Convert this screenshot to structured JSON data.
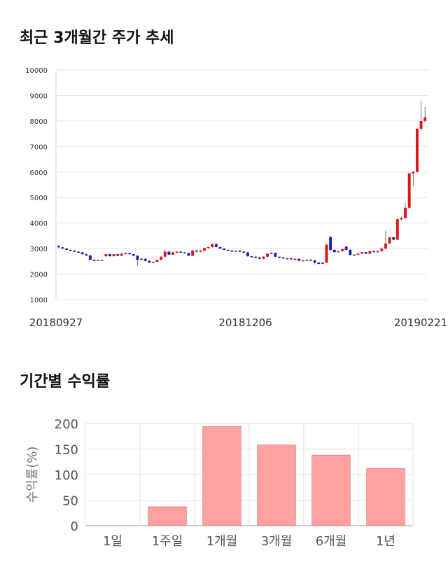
{
  "section1": {
    "title": "최근 3개월간 주가 추세"
  },
  "section2": {
    "title": "기간별 수익률"
  },
  "chart_data": [
    {
      "type": "candlestick",
      "title": "최근 3개월간 주가 추세",
      "ylim": [
        1000,
        10000
      ],
      "yticks": [
        1000,
        2000,
        3000,
        4000,
        5000,
        6000,
        7000,
        8000,
        9000,
        10000
      ],
      "x_tick_labels": [
        "20180927",
        "20181206",
        "20190221"
      ],
      "grid": true,
      "colors": {
        "up": "#d7191c",
        "down": "#1f1fb4",
        "wick": "#555555"
      },
      "candles": [
        [
          3100,
          3050,
          3130,
          3020
        ],
        [
          3050,
          3000,
          3080,
          2980
        ],
        [
          3000,
          2950,
          3020,
          2930
        ],
        [
          2950,
          2920,
          2970,
          2900
        ],
        [
          2920,
          2880,
          2940,
          2860
        ],
        [
          2880,
          2850,
          2900,
          2830
        ],
        [
          2850,
          2780,
          2870,
          2760
        ],
        [
          2780,
          2730,
          2800,
          2700
        ],
        [
          2730,
          2560,
          2750,
          2540
        ],
        [
          2560,
          2540,
          2580,
          2520
        ],
        [
          2540,
          2550,
          2570,
          2530
        ],
        [
          2550,
          2560,
          2580,
          2530
        ],
        [
          2700,
          2780,
          2800,
          2680
        ],
        [
          2780,
          2700,
          2820,
          2680
        ],
        [
          2700,
          2780,
          2800,
          2690
        ],
        [
          2780,
          2720,
          2800,
          2700
        ],
        [
          2720,
          2800,
          2830,
          2700
        ],
        [
          2800,
          2820,
          2850,
          2790
        ],
        [
          2820,
          2780,
          2840,
          2760
        ],
        [
          2780,
          2720,
          2800,
          2700
        ],
        [
          2720,
          2560,
          2740,
          2320
        ],
        [
          2560,
          2600,
          2650,
          2540
        ],
        [
          2600,
          2520,
          2620,
          2480
        ],
        [
          2520,
          2450,
          2540,
          2430
        ],
        [
          2450,
          2480,
          2500,
          2420
        ],
        [
          2480,
          2560,
          2580,
          2460
        ],
        [
          2560,
          2680,
          2700,
          2540
        ],
        [
          2680,
          2880,
          2980,
          2660
        ],
        [
          2880,
          2760,
          2900,
          2740
        ],
        [
          2760,
          2850,
          2880,
          2740
        ],
        [
          2850,
          2880,
          2900,
          2820
        ],
        [
          2880,
          2850,
          2900,
          2830
        ],
        [
          2850,
          2830,
          2870,
          2810
        ],
        [
          2830,
          2720,
          2850,
          2700
        ],
        [
          2720,
          2920,
          2940,
          2700
        ],
        [
          2920,
          2880,
          2950,
          2860
        ],
        [
          2880,
          2920,
          2950,
          2860
        ],
        [
          2920,
          3020,
          3040,
          2900
        ],
        [
          3020,
          3060,
          3080,
          3000
        ],
        [
          3060,
          3180,
          3200,
          3040
        ],
        [
          3180,
          3060,
          3200,
          3040
        ],
        [
          3060,
          3000,
          3080,
          2980
        ],
        [
          3000,
          2950,
          3020,
          2930
        ],
        [
          2950,
          2920,
          2970,
          2900
        ],
        [
          2920,
          2900,
          2950,
          2880
        ],
        [
          2900,
          2920,
          2940,
          2880
        ],
        [
          2920,
          2880,
          2940,
          2860
        ],
        [
          2880,
          2850,
          2900,
          2830
        ],
        [
          2850,
          2700,
          2870,
          2680
        ],
        [
          2700,
          2680,
          2720,
          2660
        ],
        [
          2680,
          2650,
          2700,
          2630
        ],
        [
          2650,
          2600,
          2680,
          2580
        ],
        [
          2600,
          2680,
          2700,
          2580
        ],
        [
          2680,
          2800,
          2820,
          2660
        ],
        [
          2800,
          2830,
          2850,
          2780
        ],
        [
          2830,
          2680,
          2850,
          2660
        ],
        [
          2680,
          2650,
          2700,
          2630
        ],
        [
          2650,
          2620,
          2670,
          2600
        ],
        [
          2620,
          2620,
          2650,
          2600
        ],
        [
          2620,
          2580,
          2640,
          2560
        ],
        [
          2580,
          2600,
          2620,
          2560
        ],
        [
          2600,
          2520,
          2620,
          2500
        ],
        [
          2520,
          2540,
          2560,
          2500
        ],
        [
          2540,
          2560,
          2580,
          2520
        ],
        [
          2560,
          2540,
          2580,
          2520
        ],
        [
          2540,
          2450,
          2560,
          2380
        ],
        [
          2450,
          2400,
          2470,
          2380
        ],
        [
          2400,
          2450,
          2480,
          2380
        ],
        [
          2450,
          3150,
          3200,
          2430
        ],
        [
          3450,
          2950,
          3500,
          2900
        ],
        [
          2950,
          2860,
          2980,
          2840
        ],
        [
          2860,
          2900,
          2920,
          2840
        ],
        [
          2900,
          2980,
          3000,
          2880
        ],
        [
          3080,
          2950,
          3100,
          2930
        ],
        [
          2950,
          2750,
          2980,
          2730
        ],
        [
          2750,
          2760,
          2800,
          2740
        ],
        [
          2760,
          2800,
          2820,
          2740
        ],
        [
          2800,
          2860,
          2880,
          2780
        ],
        [
          2860,
          2800,
          2880,
          2780
        ],
        [
          2800,
          2900,
          2920,
          2780
        ],
        [
          2900,
          2860,
          2920,
          2840
        ],
        [
          2860,
          2900,
          2920,
          2840
        ],
        [
          2900,
          3000,
          3050,
          2880
        ],
        [
          3000,
          3200,
          3700,
          2980
        ],
        [
          3200,
          3440,
          3460,
          3180
        ],
        [
          3440,
          3350,
          3460,
          3320
        ],
        [
          3350,
          4150,
          4200,
          3330
        ],
        [
          4150,
          4200,
          4250,
          4100
        ],
        [
          4200,
          4600,
          4800,
          4150
        ],
        [
          4600,
          5950,
          6000,
          4550
        ],
        [
          5950,
          6000,
          6050,
          5450
        ],
        [
          6000,
          7700,
          7720,
          5980
        ],
        [
          7700,
          8000,
          8800,
          7600
        ],
        [
          8000,
          8150,
          8550,
          7950
        ]
      ]
    },
    {
      "type": "bar",
      "title": "기간별 수익률",
      "categories": [
        "1일",
        "1주일",
        "1개월",
        "3개월",
        "6개월",
        "1년"
      ],
      "values": [
        0,
        37,
        194,
        158,
        138,
        112
      ],
      "ylabel": "수익률(%)",
      "ylim": [
        0,
        200
      ],
      "yticks": [
        0,
        50,
        100,
        150,
        200
      ],
      "grid": true,
      "colors": {
        "bar": "#ffa1a1",
        "bar_edge": "#d98080"
      }
    }
  ]
}
